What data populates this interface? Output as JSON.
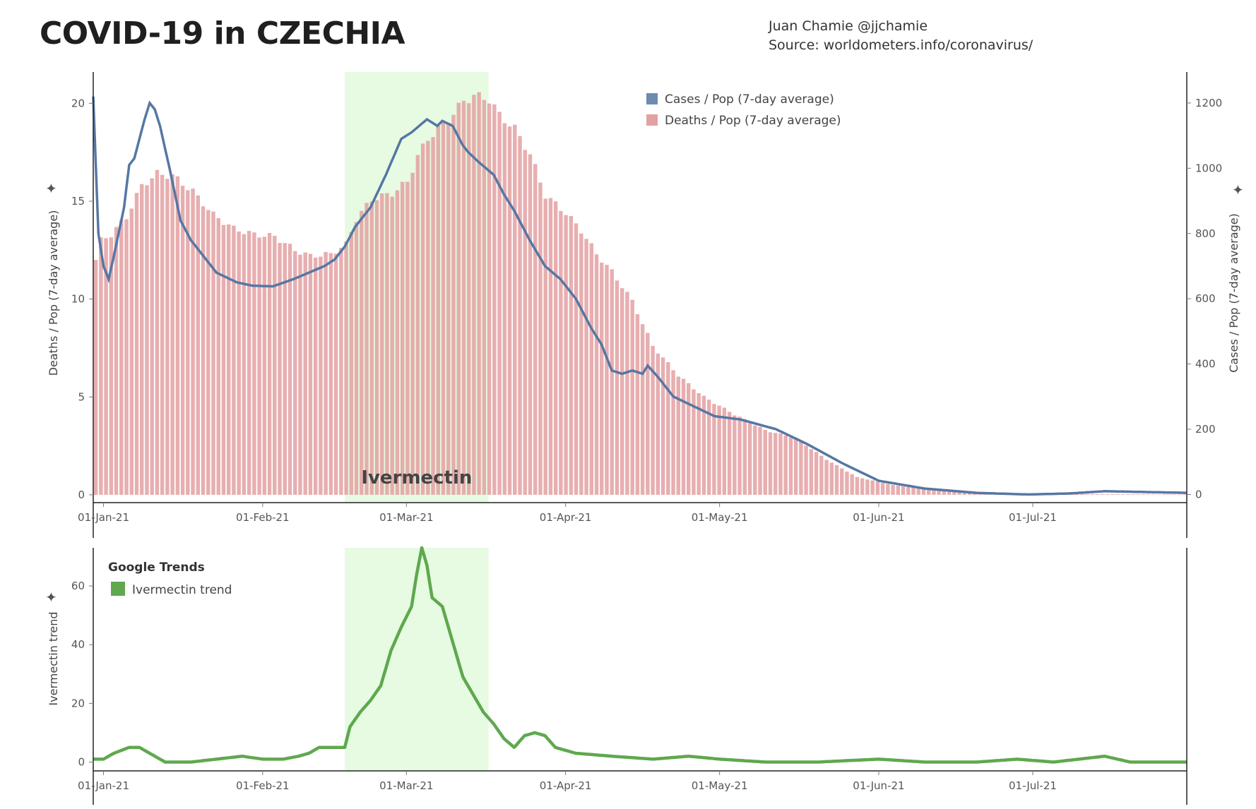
{
  "header": {
    "title": "COVID-19 in CZECHIA",
    "author": "Juan Chamie @jjchamie",
    "source": "Source: worldometers.info/coronavirus/"
  },
  "colors": {
    "cases": "#5677a3",
    "deaths": "#e3a0a2",
    "ivermectin": "#5fa84e",
    "highlight": "#e6fbe2",
    "axis": "#222222"
  },
  "chart_data": [
    {
      "type": "bar+line",
      "title": "COVID-19 in CZECHIA",
      "x_start": "2020-12-30",
      "x_end": "2021-07-31",
      "highlight": {
        "start": "2021-02-17",
        "end": "2021-03-17",
        "label": "Ivermectin"
      },
      "y_left": {
        "label": "Deaths / Pop (7-day average)",
        "ylim": [
          -0.4,
          21.6
        ],
        "ticks": [
          "0",
          "5",
          "10",
          "15",
          "20"
        ]
      },
      "y_right": {
        "label": "Cases / Pop (7-day average)",
        "ylim": [
          -25,
          1295
        ],
        "ticks": [
          "0",
          "200",
          "400",
          "600",
          "800",
          "1000",
          "1200"
        ]
      },
      "x_ticks": [
        "01-Jan-21",
        "01-Feb-21",
        "01-Mar-21",
        "01-Apr-21",
        "01-May-21",
        "01-Jun-21",
        "01-Jul-21"
      ],
      "legend": [
        "Cases / Pop (7-day average)",
        "Deaths / Pop (7-day average)"
      ],
      "deaths_keypoints": [
        [
          "2020-12-30",
          12.0
        ],
        [
          "2020-12-31",
          13.0
        ],
        [
          "2021-01-02",
          13.3
        ],
        [
          "2021-01-05",
          14.2
        ],
        [
          "2021-01-08",
          15.8
        ],
        [
          "2021-01-11",
          16.4
        ],
        [
          "2021-01-14",
          16.3
        ],
        [
          "2021-01-18",
          15.5
        ],
        [
          "2021-01-22",
          14.3
        ],
        [
          "2021-01-26",
          13.6
        ],
        [
          "2021-01-30",
          13.3
        ],
        [
          "2021-02-03",
          13.2
        ],
        [
          "2021-02-07",
          12.5
        ],
        [
          "2021-02-10",
          12.2
        ],
        [
          "2021-02-14",
          12.3
        ],
        [
          "2021-02-17",
          12.8
        ],
        [
          "2021-02-19",
          14.1
        ],
        [
          "2021-02-22",
          15.1
        ],
        [
          "2021-02-26",
          15.4
        ],
        [
          "2021-03-01",
          16.0
        ],
        [
          "2021-03-03",
          17.3
        ],
        [
          "2021-03-05",
          18.2
        ],
        [
          "2021-03-09",
          19.2
        ],
        [
          "2021-03-12",
          20.1
        ],
        [
          "2021-03-14",
          20.4
        ],
        [
          "2021-03-17",
          20.2
        ],
        [
          "2021-03-19",
          19.4
        ],
        [
          "2021-03-22",
          18.7
        ],
        [
          "2021-03-25",
          17.4
        ],
        [
          "2021-03-28",
          15.3
        ],
        [
          "2021-04-01",
          14.4
        ],
        [
          "2021-04-04",
          13.5
        ],
        [
          "2021-04-07",
          12.3
        ],
        [
          "2021-04-10",
          11.4
        ],
        [
          "2021-04-14",
          9.9
        ],
        [
          "2021-04-18",
          7.6
        ],
        [
          "2021-04-23",
          6.1
        ],
        [
          "2021-04-28",
          5.0
        ],
        [
          "2021-05-04",
          4.1
        ],
        [
          "2021-05-10",
          3.3
        ],
        [
          "2021-05-16",
          2.9
        ],
        [
          "2021-05-22",
          1.8
        ],
        [
          "2021-05-28",
          0.9
        ],
        [
          "2021-06-04",
          0.5
        ],
        [
          "2021-06-12",
          0.25
        ],
        [
          "2021-06-20",
          0.12
        ],
        [
          "2021-06-26",
          0.05
        ],
        [
          "2021-07-31",
          0.02
        ]
      ],
      "cases_keypoints": [
        [
          "2020-12-30",
          1220
        ],
        [
          "2020-12-31",
          800
        ],
        [
          "2021-01-01",
          700
        ],
        [
          "2021-01-02",
          660
        ],
        [
          "2021-01-03",
          730
        ],
        [
          "2021-01-05",
          880
        ],
        [
          "2021-01-06",
          1010
        ],
        [
          "2021-01-07",
          1030
        ],
        [
          "2021-01-09",
          1150
        ],
        [
          "2021-01-10",
          1200
        ],
        [
          "2021-01-11",
          1180
        ],
        [
          "2021-01-12",
          1130
        ],
        [
          "2021-01-14",
          990
        ],
        [
          "2021-01-16",
          840
        ],
        [
          "2021-01-18",
          780
        ],
        [
          "2021-01-20",
          740
        ],
        [
          "2021-01-23",
          680
        ],
        [
          "2021-01-27",
          650
        ],
        [
          "2021-01-30",
          640
        ],
        [
          "2021-02-03",
          638
        ],
        [
          "2021-02-07",
          660
        ],
        [
          "2021-02-10",
          680
        ],
        [
          "2021-02-13",
          700
        ],
        [
          "2021-02-15",
          720
        ],
        [
          "2021-02-17",
          760
        ],
        [
          "2021-02-19",
          820
        ],
        [
          "2021-02-22",
          880
        ],
        [
          "2021-02-25",
          980
        ],
        [
          "2021-02-28",
          1090
        ],
        [
          "2021-03-02",
          1110
        ],
        [
          "2021-03-05",
          1150
        ],
        [
          "2021-03-07",
          1130
        ],
        [
          "2021-03-08",
          1145
        ],
        [
          "2021-03-10",
          1130
        ],
        [
          "2021-03-12",
          1070
        ],
        [
          "2021-03-13",
          1050
        ],
        [
          "2021-03-15",
          1020
        ],
        [
          "2021-03-18",
          980
        ],
        [
          "2021-03-20",
          920
        ],
        [
          "2021-03-22",
          870
        ],
        [
          "2021-03-25",
          780
        ],
        [
          "2021-03-28",
          700
        ],
        [
          "2021-03-31",
          660
        ],
        [
          "2021-04-03",
          600
        ],
        [
          "2021-04-06",
          510
        ],
        [
          "2021-04-08",
          460
        ],
        [
          "2021-04-10",
          380
        ],
        [
          "2021-04-12",
          370
        ],
        [
          "2021-04-14",
          380
        ],
        [
          "2021-04-16",
          370
        ],
        [
          "2021-04-17",
          395
        ],
        [
          "2021-04-19",
          360
        ],
        [
          "2021-04-22",
          300
        ],
        [
          "2021-04-26",
          270
        ],
        [
          "2021-04-30",
          240
        ],
        [
          "2021-05-05",
          230
        ],
        [
          "2021-05-12",
          200
        ],
        [
          "2021-05-18",
          155
        ],
        [
          "2021-05-25",
          95
        ],
        [
          "2021-06-01",
          42
        ],
        [
          "2021-06-10",
          18
        ],
        [
          "2021-06-20",
          5
        ],
        [
          "2021-06-30",
          0
        ],
        [
          "2021-07-08",
          3
        ],
        [
          "2021-07-15",
          10
        ],
        [
          "2021-07-31",
          5
        ]
      ]
    },
    {
      "type": "line",
      "title": "Google Trends",
      "x_start": "2020-12-30",
      "x_end": "2021-07-31",
      "highlight": {
        "start": "2021-02-17",
        "end": "2021-03-17"
      },
      "y_left": {
        "label": "Ivermectin trend",
        "ylim": [
          -3,
          73
        ],
        "ticks": [
          "0",
          "20",
          "40",
          "60"
        ]
      },
      "x_ticks": [
        "01-Jan-21",
        "01-Feb-21",
        "01-Mar-21",
        "01-Apr-21",
        "01-May-21",
        "01-Jun-21",
        "01-Jul-21"
      ],
      "legend_title": "Google Trends",
      "legend": [
        "Ivermectin trend"
      ],
      "series_keypoints": [
        [
          "2020-12-30",
          1
        ],
        [
          "2021-01-01",
          1
        ],
        [
          "2021-01-03",
          3
        ],
        [
          "2021-01-06",
          5
        ],
        [
          "2021-01-08",
          5
        ],
        [
          "2021-01-10",
          3
        ],
        [
          "2021-01-13",
          0
        ],
        [
          "2021-01-18",
          0
        ],
        [
          "2021-01-23",
          1
        ],
        [
          "2021-01-28",
          2
        ],
        [
          "2021-02-01",
          1
        ],
        [
          "2021-02-05",
          1
        ],
        [
          "2021-02-08",
          2
        ],
        [
          "2021-02-10",
          3
        ],
        [
          "2021-02-12",
          5
        ],
        [
          "2021-02-14",
          5
        ],
        [
          "2021-02-17",
          5
        ],
        [
          "2021-02-18",
          12
        ],
        [
          "2021-02-20",
          17
        ],
        [
          "2021-02-22",
          21
        ],
        [
          "2021-02-24",
          26
        ],
        [
          "2021-02-26",
          38
        ],
        [
          "2021-02-28",
          46
        ],
        [
          "2021-03-02",
          53
        ],
        [
          "2021-03-03",
          64
        ],
        [
          "2021-03-04",
          73
        ],
        [
          "2021-03-05",
          67
        ],
        [
          "2021-03-06",
          56
        ],
        [
          "2021-03-08",
          53
        ],
        [
          "2021-03-10",
          41
        ],
        [
          "2021-03-12",
          29
        ],
        [
          "2021-03-14",
          23
        ],
        [
          "2021-03-16",
          17
        ],
        [
          "2021-03-18",
          13
        ],
        [
          "2021-03-20",
          8
        ],
        [
          "2021-03-22",
          5
        ],
        [
          "2021-03-24",
          9
        ],
        [
          "2021-03-26",
          10
        ],
        [
          "2021-03-28",
          9
        ],
        [
          "2021-03-30",
          5
        ],
        [
          "2021-04-03",
          3
        ],
        [
          "2021-04-10",
          2
        ],
        [
          "2021-04-18",
          1
        ],
        [
          "2021-04-25",
          2
        ],
        [
          "2021-05-01",
          1
        ],
        [
          "2021-05-10",
          0
        ],
        [
          "2021-05-20",
          0
        ],
        [
          "2021-06-01",
          1
        ],
        [
          "2021-06-10",
          0
        ],
        [
          "2021-06-20",
          0
        ],
        [
          "2021-06-28",
          1
        ],
        [
          "2021-07-05",
          0
        ],
        [
          "2021-07-10",
          1
        ],
        [
          "2021-07-15",
          2
        ],
        [
          "2021-07-20",
          0
        ],
        [
          "2021-07-31",
          0
        ]
      ]
    }
  ]
}
